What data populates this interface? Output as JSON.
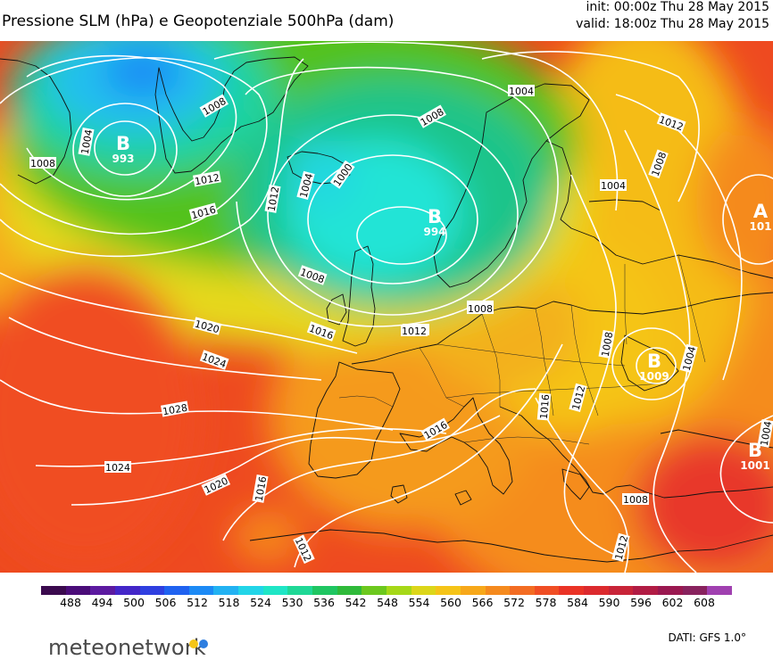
{
  "header": {
    "title": "Pressione SLM (hPa) e Geopotenziale 500hPa (dam)",
    "init": "init: 00:00z Thu 28 May 2015",
    "valid": "valid: 18:00z Thu 28 May 2015"
  },
  "isobar_labels": [
    {
      "text": "1004"
    },
    {
      "text": "1008"
    },
    {
      "text": "1008"
    },
    {
      "text": "1008"
    },
    {
      "text": "1012"
    },
    {
      "text": "1016"
    },
    {
      "text": "1004"
    },
    {
      "text": "1012"
    },
    {
      "text": "1004"
    },
    {
      "text": "1000"
    },
    {
      "text": "1008"
    },
    {
      "text": "1008"
    },
    {
      "text": "1004"
    },
    {
      "text": "1012"
    },
    {
      "text": "1008"
    },
    {
      "text": "1004"
    },
    {
      "text": "1008"
    },
    {
      "text": "1012"
    },
    {
      "text": "1016"
    },
    {
      "text": "1012"
    },
    {
      "text": "1020"
    },
    {
      "text": "1024"
    },
    {
      "text": "1028"
    },
    {
      "text": "1024"
    },
    {
      "text": "1020"
    },
    {
      "text": "1016"
    },
    {
      "text": "1012"
    },
    {
      "text": "1016"
    },
    {
      "text": "1016"
    },
    {
      "text": "1012"
    },
    {
      "text": "1008"
    },
    {
      "text": "1004"
    },
    {
      "text": "1008"
    },
    {
      "text": "1012"
    }
  ],
  "pressure_centers": [
    {
      "letter": "B",
      "value": "993"
    },
    {
      "letter": "B",
      "value": "994"
    },
    {
      "letter": "A",
      "value": "101"
    },
    {
      "letter": "B",
      "value": "1001"
    },
    {
      "letter": "B",
      "value": "1009"
    }
  ],
  "legend": {
    "ticks": [
      "488",
      "494",
      "500",
      "506",
      "512",
      "518",
      "524",
      "530",
      "536",
      "542",
      "548",
      "554",
      "560",
      "566",
      "572",
      "578",
      "584",
      "590",
      "596",
      "602",
      "608"
    ],
    "colors": [
      "#3b0a4e",
      "#4a0c78",
      "#5c1aa0",
      "#4326c8",
      "#2f3fe0",
      "#1f62f0",
      "#1c8af5",
      "#22b2f2",
      "#22d5e8",
      "#1fe6c6",
      "#1fd896",
      "#1fc662",
      "#2fba3a",
      "#6cc81e",
      "#a6d818",
      "#dcd61a",
      "#f5c418",
      "#f7a81a",
      "#f58a1e",
      "#f36c22",
      "#f04e24",
      "#ea3326",
      "#dc2a2e",
      "#c82438",
      "#b11c44",
      "#9a1850",
      "#88225e",
      "#a040b0"
    ]
  },
  "footer": {
    "brand": "meteonetwork",
    "source": "DATI: GFS 1.0°",
    "dot_colors": [
      "#f5c518",
      "#2d7ee0"
    ]
  }
}
